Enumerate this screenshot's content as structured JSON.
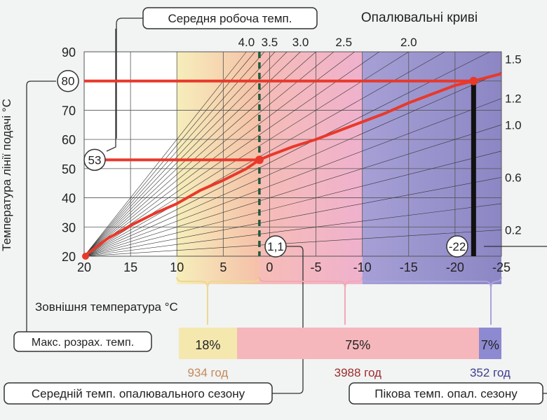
{
  "chart_data": {
    "type": "line",
    "title": "",
    "xlabel": "Зовнішня температура °C",
    "ylabel": "Температура лінії подачі °C",
    "xlim": [
      20,
      -25
    ],
    "ylim": [
      20,
      90
    ],
    "x_ticks": [
      "20",
      "15",
      "10",
      "5",
      "0",
      "-5",
      "-10",
      "-15",
      "-20",
      "-25"
    ],
    "y_ticks": [
      "20",
      "30",
      "40",
      "50",
      "60",
      "70",
      "80",
      "90"
    ],
    "grid": true,
    "heating_curves": {
      "title": "Опалювальні криві",
      "top_labels": [
        {
          "text": "4.0",
          "slope": 4.0
        },
        {
          "text": "3.5",
          "slope": 3.5
        },
        {
          "text": "3.0",
          "slope": 3.0
        },
        {
          "text": "2.5",
          "slope": 2.5
        },
        {
          "text": "2.0",
          "slope": 2.0
        }
      ],
      "right_labels": [
        {
          "text": "1.5",
          "slope": 1.5
        },
        {
          "text": "1.2",
          "slope": 1.2
        },
        {
          "text": "1.0",
          "slope": 1.0
        },
        {
          "text": "0.6",
          "slope": 0.6
        },
        {
          "text": "0.2",
          "slope": 0.2
        }
      ],
      "slopes": [
        0.2,
        0.4,
        0.6,
        0.8,
        1.0,
        1.2,
        1.4,
        1.6,
        1.8,
        2.0,
        2.2,
        2.4,
        2.6,
        2.8,
        3.0,
        3.2,
        3.4,
        3.6,
        3.8,
        4.0
      ],
      "color": "#333333"
    },
    "series": [
      {
        "name": "",
        "color": "#e8392b",
        "x": [
          20,
          17.5,
          15,
          12.5,
          10,
          7.5,
          5,
          2.5,
          1.1,
          0,
          -2.5,
          -5,
          -7.5,
          -10,
          -12.5,
          -15,
          -17.5,
          -20,
          -22,
          -25
        ],
        "y": [
          20,
          26,
          30.5,
          34.5,
          38,
          42.5,
          46,
          50,
          53,
          54.5,
          57.5,
          60,
          63,
          66,
          69,
          72.5,
          75.5,
          78.5,
          80,
          82.5
        ]
      }
    ],
    "markers": [
      {
        "label": "53",
        "y": 53,
        "x_from": 20,
        "x_to": 1.1
      },
      {
        "label": "80",
        "y": 80,
        "x_from": 20,
        "x_to": -22
      }
    ],
    "vertical_lines": [
      {
        "label": "1,1",
        "x": 1.1,
        "style": "dashed",
        "color": "#1f5a3c"
      },
      {
        "label": "-22",
        "x": -22,
        "style": "solid",
        "color": "#111111"
      }
    ],
    "zones": [
      {
        "x_from": 10,
        "x_to": 1.1,
        "color_from": "#f6eebb",
        "color_to": "#f5c0a8"
      },
      {
        "x_from": 1.1,
        "x_to": -10,
        "color_from": "#f6bdb6",
        "color_to": "#efb1cd"
      },
      {
        "x_from": -10,
        "x_to": -25,
        "color_from": "#a6a0d6",
        "color_to": "#8c86c4"
      }
    ],
    "season_bar": [
      {
        "percent": "18%",
        "hours": "934 год",
        "share": 0.18,
        "color": "#f4e8ae",
        "hours_color": "#c38a5a"
      },
      {
        "percent": "75%",
        "hours": "3988 год",
        "share": 0.75,
        "color": "#f5b7bb",
        "hours_color": "#9c2b2b"
      },
      {
        "percent": "7%",
        "hours": "352 год",
        "share": 0.07,
        "color": "#8d8ad2",
        "hours_color": "#3d3d8f"
      }
    ],
    "callouts": {
      "avg_working_temp": "Середня робоча темп.",
      "max_design_temp": "Макс. розрах. темп.",
      "avg_season_temp": "Середній темп. опалювального сезону",
      "peak_season_temp": "Пікова темп. опал. сезону"
    }
  }
}
